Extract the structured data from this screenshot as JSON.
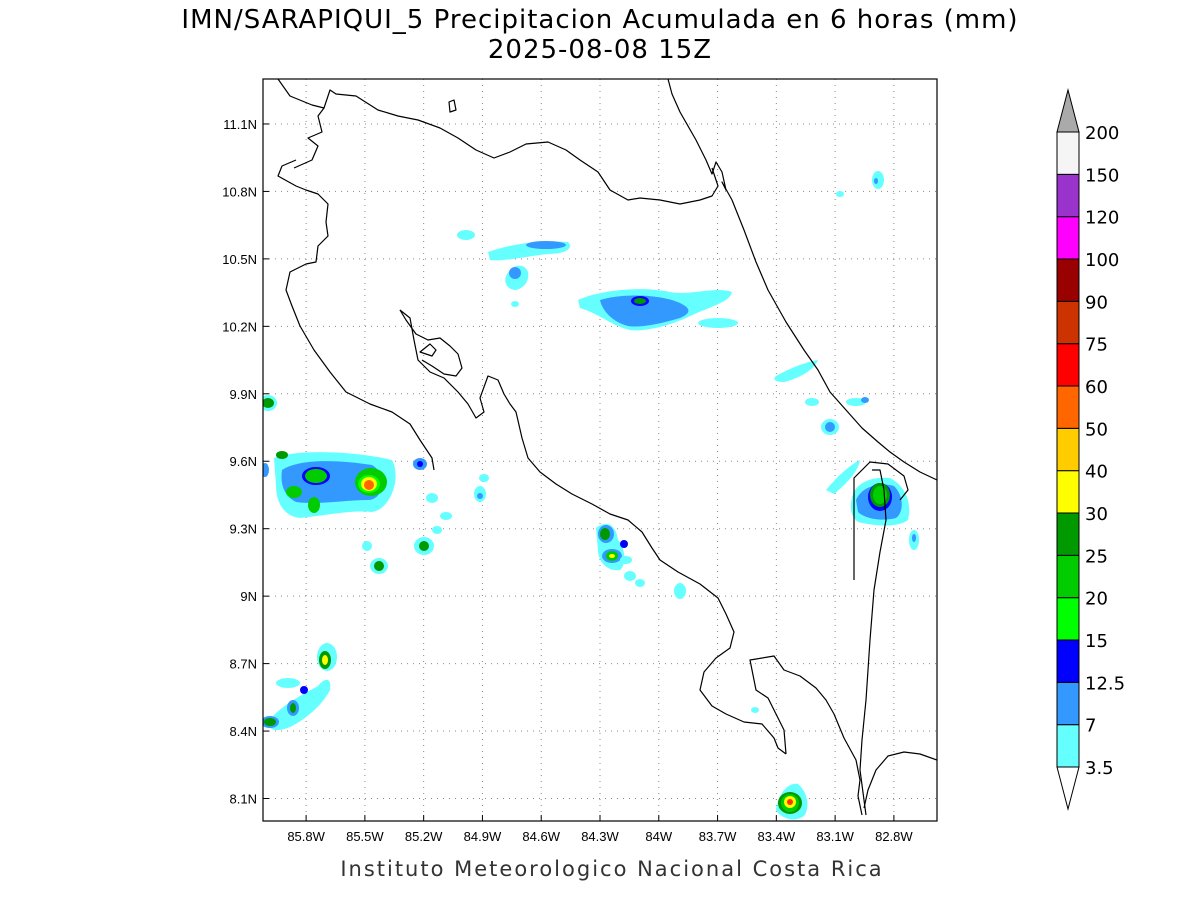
{
  "title": {
    "line1": "IMN/SARAPIQUI_5 Precipitacion Acumulada en 6 horas (mm)",
    "line2": "2025-08-08 15Z"
  },
  "credit": "Instituto Meteorologico Nacional Costa Rica",
  "map": {
    "lon_range": [
      -86.02,
      -82.58
    ],
    "lat_range": [
      8.0,
      11.3
    ],
    "grid": true
  },
  "x_ticks": [
    "85.8W",
    "85.5W",
    "85.2W",
    "84.9W",
    "84.6W",
    "84.3W",
    "84W",
    "83.7W",
    "83.4W",
    "83.1W",
    "82.8W"
  ],
  "x_tick_values": [
    -85.8,
    -85.5,
    -85.2,
    -84.9,
    -84.6,
    -84.3,
    -84.0,
    -83.7,
    -83.4,
    -83.1,
    -82.8
  ],
  "y_ticks": [
    "8.1N",
    "8.4N",
    "8.7N",
    "9N",
    "9.3N",
    "9.6N",
    "9.9N",
    "10.2N",
    "10.5N",
    "10.8N",
    "11.1N"
  ],
  "y_tick_values": [
    8.1,
    8.4,
    8.7,
    9.0,
    9.3,
    9.6,
    9.9,
    10.2,
    10.5,
    10.8,
    11.1
  ],
  "legend": {
    "levels": [
      "3.5",
      "7",
      "12.5",
      "15",
      "20",
      "25",
      "30",
      "40",
      "50",
      "60",
      "75",
      "90",
      "100",
      "120",
      "150",
      "200"
    ],
    "colors": [
      "#66ffff",
      "#3399ff",
      "#0000ff",
      "#00ff00",
      "#00cc00",
      "#009900",
      "#ffff00",
      "#ffcc00",
      "#ff6600",
      "#ff0000",
      "#cc3300",
      "#990000",
      "#ff00ff",
      "#9933cc",
      "#f5f5f5",
      "#aaaaaa"
    ]
  }
}
